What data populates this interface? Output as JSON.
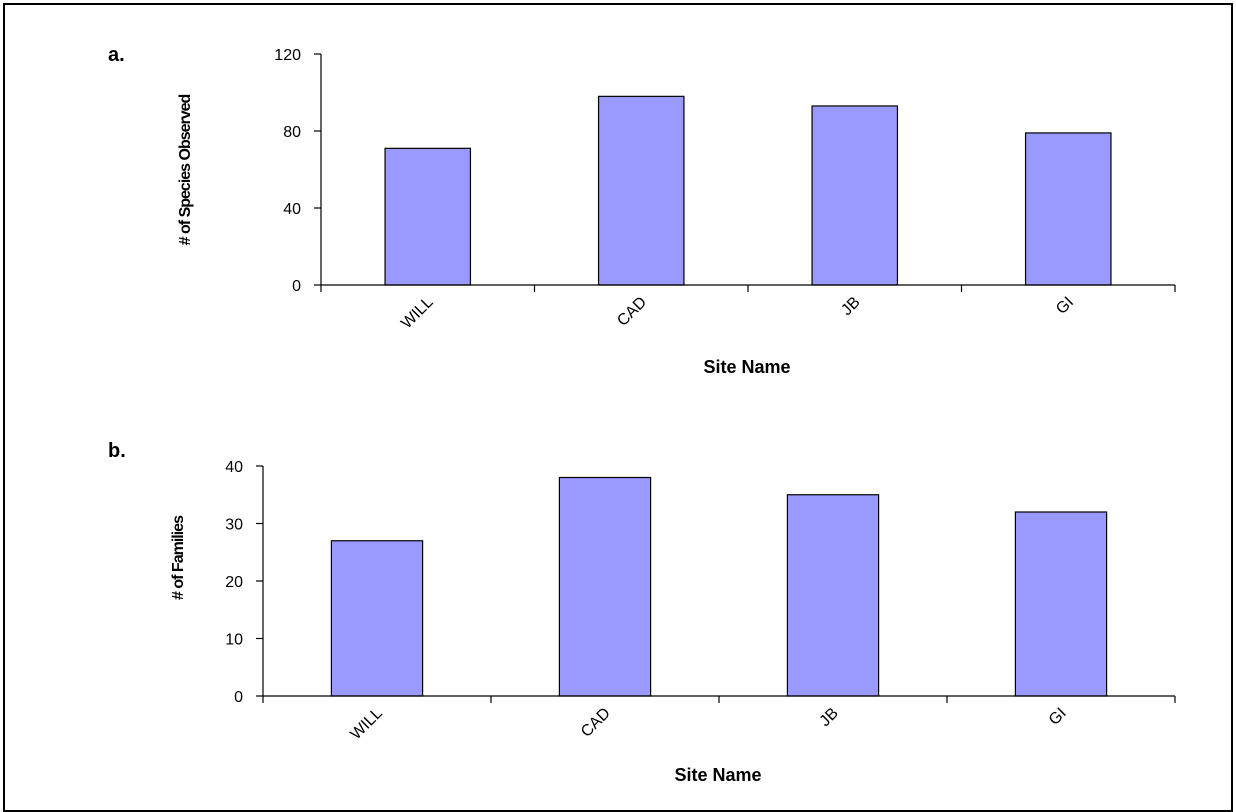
{
  "chart_data": [
    {
      "panel_label": "a.",
      "type": "bar",
      "categories": [
        "WILL",
        "CAD",
        "JB",
        "GI"
      ],
      "values": [
        71,
        98,
        93,
        79
      ],
      "xlabel": "Site Name",
      "ylabel": "# of Species Observed",
      "ylim": [
        0,
        120
      ],
      "yticks": [
        0,
        40,
        80,
        120
      ],
      "bar_color": "#9999ff",
      "grid": false,
      "legend": "none"
    },
    {
      "panel_label": "b.",
      "type": "bar",
      "categories": [
        "WILL",
        "CAD",
        "JB",
        "GI"
      ],
      "values": [
        27,
        38,
        35,
        32
      ],
      "xlabel": "Site Name",
      "ylabel": "# of Families",
      "ylim": [
        0,
        40
      ],
      "yticks": [
        0,
        10,
        20,
        30,
        40
      ],
      "bar_color": "#9999ff",
      "grid": false,
      "legend": "none"
    }
  ]
}
